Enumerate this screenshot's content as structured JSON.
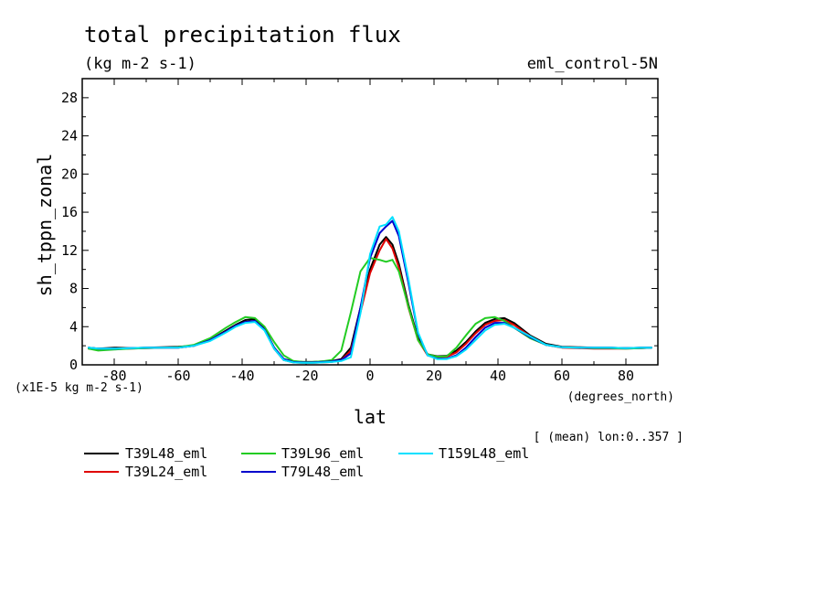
{
  "chart_data": {
    "type": "line",
    "title": "total precipitation flux",
    "units": "(kg m-2 s-1)",
    "experiment": "eml_control-5N",
    "ylabel": "sh_tppn_zonal",
    "yscale_label": "(x1E-5 kg m-2 s-1)",
    "xlabel": "lat",
    "xunits": "(degrees_north)",
    "footnote": "[ (mean) lon:0..357 ]",
    "xlim": [
      -90,
      90
    ],
    "ylim": [
      0,
      30
    ],
    "xticks": [
      -80,
      -60,
      -40,
      -20,
      0,
      20,
      40,
      60,
      80
    ],
    "yticks": [
      0,
      4,
      8,
      12,
      16,
      20,
      24,
      28
    ],
    "grid": false,
    "legend_position": "bottom",
    "x": [
      -88,
      -85,
      -80,
      -75,
      -70,
      -65,
      -60,
      -55,
      -50,
      -45,
      -42,
      -39,
      -36,
      -33,
      -30,
      -27,
      -24,
      -21,
      -18,
      -15,
      -12,
      -9,
      -6,
      -3,
      0,
      3,
      5,
      7,
      9,
      12,
      15,
      18,
      21,
      24,
      27,
      30,
      33,
      36,
      39,
      42,
      45,
      50,
      55,
      60,
      65,
      70,
      75,
      80,
      85,
      88
    ],
    "series": [
      {
        "name": "T39L48_eml",
        "color": "#000000",
        "values": [
          1.8,
          1.7,
          1.8,
          1.75,
          1.8,
          1.85,
          1.9,
          2.0,
          2.6,
          3.6,
          4.2,
          4.7,
          4.8,
          3.8,
          1.8,
          0.6,
          0.35,
          0.3,
          0.3,
          0.35,
          0.4,
          0.6,
          1.8,
          6.0,
          10.0,
          12.6,
          13.4,
          12.6,
          10.6,
          6.3,
          2.8,
          1.1,
          0.9,
          0.95,
          1.5,
          2.4,
          3.5,
          4.4,
          4.8,
          4.9,
          4.4,
          3.1,
          2.2,
          1.9,
          1.85,
          1.8,
          1.8,
          1.75,
          1.8,
          1.8
        ]
      },
      {
        "name": "T39L24_eml",
        "color": "#e00000",
        "values": [
          1.7,
          1.6,
          1.65,
          1.7,
          1.75,
          1.8,
          1.8,
          2.0,
          2.6,
          3.5,
          4.1,
          4.5,
          4.6,
          3.7,
          1.7,
          0.5,
          0.25,
          0.2,
          0.2,
          0.25,
          0.3,
          0.5,
          1.5,
          5.5,
          9.6,
          12.0,
          13.2,
          12.2,
          10.2,
          6.0,
          2.6,
          1.0,
          0.8,
          0.85,
          1.3,
          2.2,
          3.3,
          4.2,
          4.6,
          4.7,
          4.2,
          3.0,
          2.1,
          1.8,
          1.75,
          1.7,
          1.7,
          1.7,
          1.75,
          1.8
        ]
      },
      {
        "name": "T39L96_eml",
        "color": "#22cc22",
        "values": [
          1.7,
          1.5,
          1.6,
          1.7,
          1.75,
          1.8,
          1.85,
          2.1,
          2.8,
          3.9,
          4.5,
          5.0,
          4.9,
          4.0,
          2.4,
          1.0,
          0.4,
          0.3,
          0.3,
          0.35,
          0.5,
          1.5,
          5.5,
          9.8,
          11.2,
          11.0,
          10.8,
          11.0,
          9.8,
          6.1,
          2.6,
          1.1,
          0.85,
          0.9,
          1.8,
          3.1,
          4.3,
          4.9,
          5.0,
          4.6,
          3.9,
          2.8,
          2.1,
          1.85,
          1.8,
          1.75,
          1.75,
          1.7,
          1.75,
          1.8
        ]
      },
      {
        "name": "T79L48_eml",
        "color": "#0000cc",
        "values": [
          1.8,
          1.7,
          1.7,
          1.75,
          1.8,
          1.8,
          1.8,
          2.0,
          2.6,
          3.5,
          4.1,
          4.5,
          4.6,
          3.7,
          1.8,
          0.6,
          0.3,
          0.25,
          0.25,
          0.3,
          0.35,
          0.5,
          1.2,
          6.0,
          11.2,
          13.8,
          14.5,
          15.1,
          13.5,
          8.6,
          3.3,
          1.0,
          0.65,
          0.65,
          1.0,
          1.8,
          2.9,
          3.9,
          4.4,
          4.4,
          3.9,
          2.9,
          2.1,
          1.85,
          1.8,
          1.8,
          1.8,
          1.75,
          1.8,
          1.8
        ]
      },
      {
        "name": "T159L48_eml",
        "color": "#00e0ff",
        "values": [
          1.8,
          1.7,
          1.7,
          1.75,
          1.8,
          1.8,
          1.8,
          2.0,
          2.5,
          3.4,
          4.0,
          4.4,
          4.5,
          3.6,
          1.7,
          0.5,
          0.25,
          0.2,
          0.2,
          0.25,
          0.3,
          0.4,
          0.8,
          5.4,
          11.6,
          14.5,
          14.7,
          15.5,
          14.0,
          9.0,
          3.4,
          1.0,
          0.6,
          0.6,
          0.9,
          1.6,
          2.6,
          3.6,
          4.2,
          4.3,
          3.9,
          3.0,
          2.1,
          1.85,
          1.8,
          1.8,
          1.8,
          1.75,
          1.8,
          1.8
        ]
      }
    ]
  }
}
